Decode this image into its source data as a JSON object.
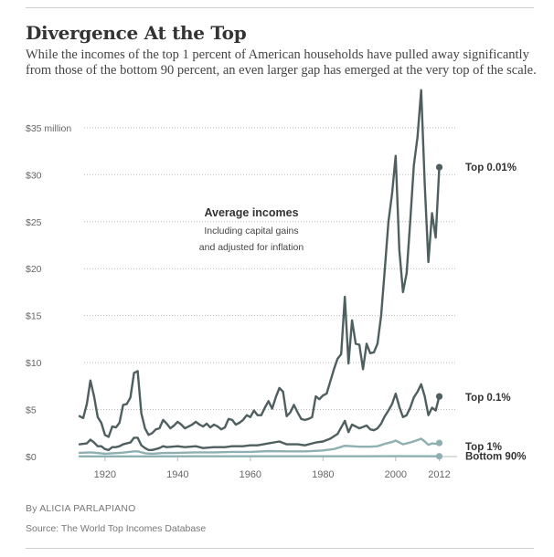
{
  "header": {
    "title": "Divergence At the Top",
    "subtitle": "While the incomes of the top 1 percent of American households have pulled away significantly from those of the bottom 90 percent, an even larger gap has emerged at the very top of the scale."
  },
  "footer": {
    "byline": "By ALICIA PARLAPIANO",
    "source": "Source: The World Top Incomes Database"
  },
  "chart_data": {
    "type": "line",
    "annotation": {
      "title": "Average incomes",
      "line1": "Including capital gains",
      "line2": "and adjusted for inflation"
    },
    "y_ticks": [
      {
        "value": 0,
        "label": "$0"
      },
      {
        "value": 5,
        "label": "$5"
      },
      {
        "value": 10,
        "label": "$10"
      },
      {
        "value": 15,
        "label": "$15"
      },
      {
        "value": 20,
        "label": "$20"
      },
      {
        "value": 25,
        "label": "$25"
      },
      {
        "value": 30,
        "label": "$30"
      },
      {
        "value": 35,
        "label": "$35 million"
      }
    ],
    "x_ticks": [
      {
        "value": 1920,
        "label": "1920"
      },
      {
        "value": 1940,
        "label": "1940"
      },
      {
        "value": 1960,
        "label": "1960"
      },
      {
        "value": 1980,
        "label": "1980"
      },
      {
        "value": 2000,
        "label": "2000"
      },
      {
        "value": 2012,
        "label": "2012"
      }
    ],
    "xlim": [
      1913,
      2012
    ],
    "ylim": [
      0,
      38
    ],
    "grid": true,
    "colors": {
      "dark": "#4f5f5f",
      "light": "#8fb0b2",
      "grid": "#bbbbbb",
      "label": "#333333",
      "tick": "#666666"
    },
    "series": [
      {
        "name": "Top 0.01%",
        "color": "#4f5f5f",
        "endpoint": true,
        "points": [
          [
            1913,
            4.3
          ],
          [
            1914,
            4.1
          ],
          [
            1915,
            5.6
          ],
          [
            1916,
            8.1
          ],
          [
            1917,
            6.4
          ],
          [
            1918,
            4.2
          ],
          [
            1919,
            3.6
          ],
          [
            1920,
            2.3
          ],
          [
            1921,
            2.1
          ],
          [
            1922,
            3.2
          ],
          [
            1923,
            3.1
          ],
          [
            1924,
            3.6
          ],
          [
            1925,
            5.5
          ],
          [
            1926,
            5.6
          ],
          [
            1927,
            6.3
          ],
          [
            1928,
            8.9
          ],
          [
            1929,
            9.1
          ],
          [
            1930,
            4.6
          ],
          [
            1931,
            3.0
          ],
          [
            1932,
            2.3
          ],
          [
            1933,
            2.5
          ],
          [
            1934,
            2.9
          ],
          [
            1935,
            3.0
          ],
          [
            1936,
            3.9
          ],
          [
            1937,
            3.5
          ],
          [
            1938,
            3.0
          ],
          [
            1939,
            3.3
          ],
          [
            1940,
            3.7
          ],
          [
            1941,
            3.4
          ],
          [
            1942,
            3.0
          ],
          [
            1943,
            3.2
          ],
          [
            1944,
            3.4
          ],
          [
            1945,
            3.7
          ],
          [
            1946,
            3.4
          ],
          [
            1947,
            3.2
          ],
          [
            1948,
            3.5
          ],
          [
            1949,
            3.1
          ],
          [
            1950,
            3.4
          ],
          [
            1951,
            3.2
          ],
          [
            1952,
            2.9
          ],
          [
            1953,
            3.1
          ],
          [
            1954,
            4.0
          ],
          [
            1955,
            3.9
          ],
          [
            1956,
            3.4
          ],
          [
            1957,
            3.6
          ],
          [
            1958,
            3.9
          ],
          [
            1959,
            4.4
          ],
          [
            1960,
            4.2
          ],
          [
            1961,
            4.9
          ],
          [
            1962,
            4.4
          ],
          [
            1963,
            4.4
          ],
          [
            1964,
            5.2
          ],
          [
            1965,
            5.9
          ],
          [
            1966,
            5.1
          ],
          [
            1967,
            6.3
          ],
          [
            1968,
            7.3
          ],
          [
            1969,
            6.9
          ],
          [
            1970,
            4.3
          ],
          [
            1971,
            4.7
          ],
          [
            1972,
            5.5
          ],
          [
            1973,
            4.7
          ],
          [
            1974,
            4.0
          ],
          [
            1975,
            3.9
          ],
          [
            1976,
            4.0
          ],
          [
            1977,
            4.2
          ],
          [
            1978,
            6.4
          ],
          [
            1979,
            6.1
          ],
          [
            1980,
            6.5
          ],
          [
            1981,
            6.7
          ],
          [
            1982,
            8.0
          ],
          [
            1983,
            9.3
          ],
          [
            1984,
            10.4
          ],
          [
            1985,
            10.9
          ],
          [
            1986,
            17.0
          ],
          [
            1987,
            9.9
          ],
          [
            1988,
            14.5
          ],
          [
            1989,
            12.0
          ],
          [
            1990,
            11.9
          ],
          [
            1991,
            9.3
          ],
          [
            1992,
            12.0
          ],
          [
            1993,
            11.0
          ],
          [
            1994,
            11.1
          ],
          [
            1995,
            12.0
          ],
          [
            1996,
            15.0
          ],
          [
            1997,
            19.9
          ],
          [
            1998,
            25.0
          ],
          [
            1999,
            28.0
          ],
          [
            2000,
            32.0
          ],
          [
            2001,
            22.0
          ],
          [
            2002,
            17.5
          ],
          [
            2003,
            19.5
          ],
          [
            2004,
            25.0
          ],
          [
            2005,
            31.0
          ],
          [
            2006,
            34.0
          ],
          [
            2007,
            39.0
          ],
          [
            2008,
            29.0
          ],
          [
            2009,
            20.7
          ],
          [
            2010,
            25.9
          ],
          [
            2011,
            23.3
          ],
          [
            2012,
            30.8
          ]
        ]
      },
      {
        "name": "Top 0.1%",
        "color": "#4f5f5f",
        "endpoint": true,
        "points": [
          [
            1913,
            1.3
          ],
          [
            1915,
            1.4
          ],
          [
            1916,
            1.8
          ],
          [
            1917,
            1.5
          ],
          [
            1918,
            1.1
          ],
          [
            1919,
            1.1
          ],
          [
            1920,
            0.8
          ],
          [
            1921,
            0.7
          ],
          [
            1922,
            1.0
          ],
          [
            1923,
            1.0
          ],
          [
            1924,
            1.1
          ],
          [
            1925,
            1.3
          ],
          [
            1926,
            1.4
          ],
          [
            1927,
            1.5
          ],
          [
            1928,
            2.0
          ],
          [
            1929,
            2.0
          ],
          [
            1930,
            1.2
          ],
          [
            1931,
            0.9
          ],
          [
            1932,
            0.7
          ],
          [
            1933,
            0.7
          ],
          [
            1934,
            0.8
          ],
          [
            1935,
            0.9
          ],
          [
            1936,
            1.1
          ],
          [
            1937,
            1.0
          ],
          [
            1940,
            1.1
          ],
          [
            1942,
            1.0
          ],
          [
            1945,
            1.1
          ],
          [
            1947,
            0.9
          ],
          [
            1950,
            1.0
          ],
          [
            1953,
            1.0
          ],
          [
            1955,
            1.1
          ],
          [
            1958,
            1.1
          ],
          [
            1960,
            1.2
          ],
          [
            1962,
            1.2
          ],
          [
            1965,
            1.4
          ],
          [
            1968,
            1.6
          ],
          [
            1970,
            1.3
          ],
          [
            1973,
            1.3
          ],
          [
            1975,
            1.2
          ],
          [
            1978,
            1.5
          ],
          [
            1980,
            1.6
          ],
          [
            1982,
            1.9
          ],
          [
            1984,
            2.4
          ],
          [
            1986,
            3.8
          ],
          [
            1987,
            2.6
          ],
          [
            1988,
            3.4
          ],
          [
            1990,
            3.0
          ],
          [
            1992,
            3.3
          ],
          [
            1993,
            2.9
          ],
          [
            1994,
            2.8
          ],
          [
            1995,
            3.0
          ],
          [
            1996,
            3.5
          ],
          [
            1997,
            4.3
          ],
          [
            1998,
            4.9
          ],
          [
            1999,
            5.6
          ],
          [
            2000,
            6.7
          ],
          [
            2001,
            5.3
          ],
          [
            2002,
            4.2
          ],
          [
            2003,
            4.4
          ],
          [
            2004,
            5.2
          ],
          [
            2005,
            6.3
          ],
          [
            2006,
            6.9
          ],
          [
            2007,
            7.7
          ],
          [
            2008,
            6.4
          ],
          [
            2009,
            4.4
          ],
          [
            2010,
            5.2
          ],
          [
            2011,
            4.9
          ],
          [
            2012,
            6.4
          ]
        ]
      },
      {
        "name": "Top 1%",
        "color": "#8fb0b2",
        "endpoint": true,
        "points": [
          [
            1913,
            0.4
          ],
          [
            1916,
            0.45
          ],
          [
            1918,
            0.38
          ],
          [
            1920,
            0.3
          ],
          [
            1922,
            0.35
          ],
          [
            1925,
            0.42
          ],
          [
            1928,
            0.55
          ],
          [
            1929,
            0.55
          ],
          [
            1931,
            0.35
          ],
          [
            1933,
            0.3
          ],
          [
            1936,
            0.38
          ],
          [
            1940,
            0.4
          ],
          [
            1945,
            0.45
          ],
          [
            1950,
            0.45
          ],
          [
            1955,
            0.5
          ],
          [
            1960,
            0.5
          ],
          [
            1965,
            0.58
          ],
          [
            1970,
            0.55
          ],
          [
            1975,
            0.55
          ],
          [
            1978,
            0.6
          ],
          [
            1980,
            0.65
          ],
          [
            1983,
            0.8
          ],
          [
            1986,
            1.15
          ],
          [
            1988,
            1.1
          ],
          [
            1990,
            1.05
          ],
          [
            1993,
            1.05
          ],
          [
            1995,
            1.1
          ],
          [
            1997,
            1.35
          ],
          [
            1999,
            1.55
          ],
          [
            2000,
            1.7
          ],
          [
            2002,
            1.3
          ],
          [
            2004,
            1.5
          ],
          [
            2006,
            1.75
          ],
          [
            2007,
            1.9
          ],
          [
            2008,
            1.6
          ],
          [
            2009,
            1.25
          ],
          [
            2010,
            1.4
          ],
          [
            2011,
            1.35
          ],
          [
            2012,
            1.45
          ]
        ]
      },
      {
        "name": "Bottom 90%",
        "color": "#8fb0b2",
        "endpoint": true,
        "points": [
          [
            1913,
            0.02
          ],
          [
            1930,
            0.02
          ],
          [
            1945,
            0.03
          ],
          [
            1960,
            0.03
          ],
          [
            1975,
            0.03
          ],
          [
            1990,
            0.03
          ],
          [
            2000,
            0.035
          ],
          [
            2012,
            0.03
          ]
        ]
      }
    ]
  }
}
